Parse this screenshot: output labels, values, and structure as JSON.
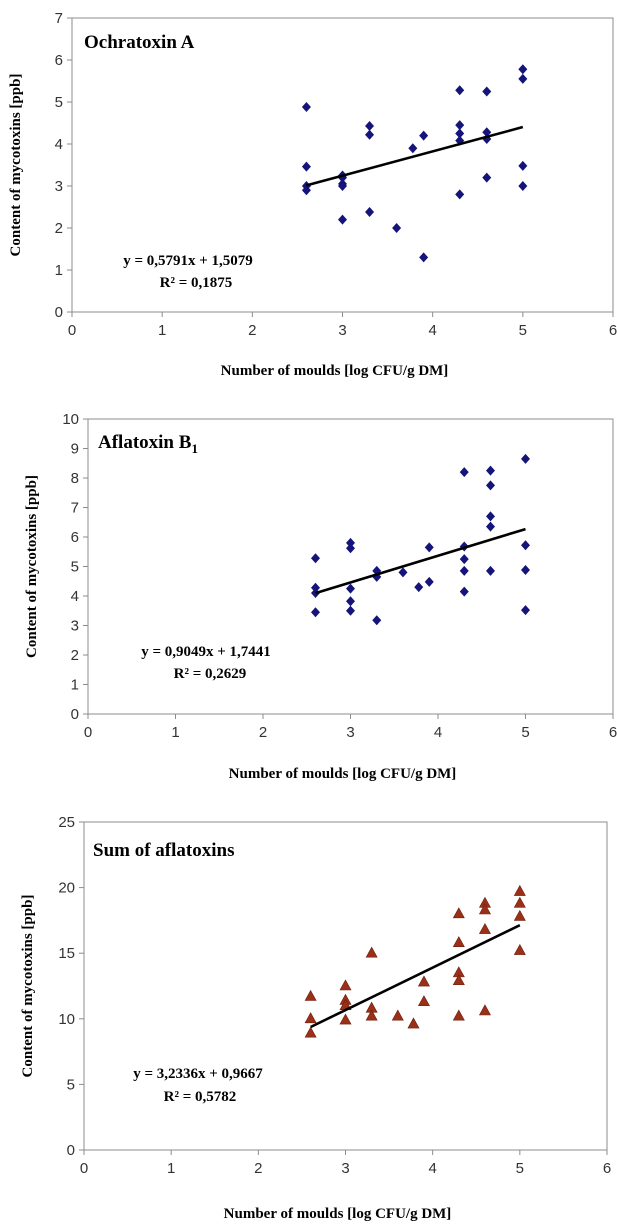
{
  "chart_data": [
    {
      "type": "scatter",
      "title": "Ochratoxin A",
      "title_sub": "",
      "xlabel": "Number of moulds  [log CFU/g DM]",
      "ylabel": "Content of mycotoxins [ppb]",
      "xlim": [
        0,
        6
      ],
      "ylim": [
        0,
        7
      ],
      "xticks": [
        "0",
        "1",
        "2",
        "3",
        "4",
        "5",
        "6"
      ],
      "yticks": [
        "0",
        "1",
        "2",
        "3",
        "4",
        "5",
        "6",
        "7"
      ],
      "marker": "diamond",
      "color": "#14147a",
      "points": [
        [
          2.6,
          4.88
        ],
        [
          2.6,
          3.46
        ],
        [
          2.6,
          3.0
        ],
        [
          2.6,
          2.9
        ],
        [
          3.0,
          3.25
        ],
        [
          3.0,
          3.2
        ],
        [
          3.0,
          3.05
        ],
        [
          3.0,
          3.0
        ],
        [
          3.0,
          2.2
        ],
        [
          3.3,
          4.43
        ],
        [
          3.3,
          4.22
        ],
        [
          3.3,
          2.38
        ],
        [
          3.6,
          2.0
        ],
        [
          3.78,
          3.9
        ],
        [
          3.9,
          4.2
        ],
        [
          3.9,
          1.3
        ],
        [
          4.3,
          5.28
        ],
        [
          4.3,
          4.45
        ],
        [
          4.3,
          4.25
        ],
        [
          4.3,
          4.08
        ],
        [
          4.3,
          2.8
        ],
        [
          4.6,
          5.25
        ],
        [
          4.6,
          4.28
        ],
        [
          4.6,
          4.12
        ],
        [
          4.6,
          3.2
        ],
        [
          5.0,
          5.78
        ],
        [
          5.0,
          5.55
        ],
        [
          5.0,
          3.48
        ],
        [
          5.0,
          3.0
        ]
      ],
      "trendline": {
        "slope": 0.5791,
        "intercept": 1.5079,
        "x_range": [
          2.6,
          5.0
        ]
      },
      "equation": "y = 0,5791x + 1,5079",
      "r2": "R² = 0,1875"
    },
    {
      "type": "scatter",
      "title": "Aflatoxin B",
      "title_sub": "1",
      "xlabel": "Number of moulds  [log CFU/g DM]",
      "ylabel": "Content of mycotoxins [ppb]",
      "xlim": [
        0,
        6
      ],
      "ylim": [
        0,
        10
      ],
      "xticks": [
        "0",
        "1",
        "2",
        "3",
        "4",
        "5",
        "6"
      ],
      "yticks": [
        "0",
        "1",
        "2",
        "3",
        "4",
        "5",
        "6",
        "7",
        "8",
        "9",
        "10"
      ],
      "marker": "diamond",
      "color": "#14147a",
      "points": [
        [
          2.6,
          5.28
        ],
        [
          2.6,
          4.28
        ],
        [
          2.6,
          4.1
        ],
        [
          2.6,
          3.45
        ],
        [
          3.0,
          5.8
        ],
        [
          3.0,
          5.62
        ],
        [
          3.0,
          4.25
        ],
        [
          3.0,
          3.82
        ],
        [
          3.0,
          3.5
        ],
        [
          3.3,
          4.85
        ],
        [
          3.3,
          4.65
        ],
        [
          3.3,
          3.18
        ],
        [
          3.6,
          4.8
        ],
        [
          3.78,
          4.3
        ],
        [
          3.9,
          5.65
        ],
        [
          3.9,
          4.48
        ],
        [
          4.3,
          8.2
        ],
        [
          4.3,
          5.68
        ],
        [
          4.3,
          5.25
        ],
        [
          4.3,
          4.85
        ],
        [
          4.3,
          4.15
        ],
        [
          4.6,
          8.25
        ],
        [
          4.6,
          7.75
        ],
        [
          4.6,
          6.7
        ],
        [
          4.6,
          6.35
        ],
        [
          4.6,
          4.85
        ],
        [
          5.0,
          8.65
        ],
        [
          5.0,
          5.72
        ],
        [
          5.0,
          4.88
        ],
        [
          5.0,
          3.52
        ]
      ],
      "trendline": {
        "slope": 0.9049,
        "intercept": 1.7441,
        "x_range": [
          2.6,
          5.0
        ]
      },
      "equation": "y = 0,9049x + 1,7441",
      "r2": "R² = 0,2629"
    },
    {
      "type": "scatter",
      "title": "Sum of aflatoxins",
      "title_sub": "",
      "xlabel": "Number of moulds  [log CFU/g DM]",
      "ylabel": "Content of mycotoxins [ppb]",
      "xlim": [
        0,
        6
      ],
      "ylim": [
        0,
        25
      ],
      "xticks": [
        "0",
        "1",
        "2",
        "3",
        "4",
        "5",
        "6"
      ],
      "yticks": [
        "0",
        "5",
        "10",
        "15",
        "20",
        "25"
      ],
      "marker": "triangle",
      "color": "#9a3018",
      "points": [
        [
          2.6,
          11.7
        ],
        [
          2.6,
          10.0
        ],
        [
          2.6,
          8.9
        ],
        [
          3.0,
          12.5
        ],
        [
          3.0,
          11.4
        ],
        [
          3.0,
          11.0
        ],
        [
          3.0,
          9.9
        ],
        [
          3.3,
          15.0
        ],
        [
          3.3,
          10.8
        ],
        [
          3.3,
          10.2
        ],
        [
          3.6,
          10.2
        ],
        [
          3.78,
          9.6
        ],
        [
          3.9,
          12.8
        ],
        [
          3.9,
          11.3
        ],
        [
          4.3,
          18.0
        ],
        [
          4.3,
          15.8
        ],
        [
          4.3,
          13.5
        ],
        [
          4.3,
          12.9
        ],
        [
          4.3,
          10.2
        ],
        [
          4.6,
          18.8
        ],
        [
          4.6,
          18.3
        ],
        [
          4.6,
          16.8
        ],
        [
          4.6,
          10.6
        ],
        [
          5.0,
          19.7
        ],
        [
          5.0,
          18.8
        ],
        [
          5.0,
          17.8
        ],
        [
          5.0,
          15.2
        ]
      ],
      "trendline": {
        "slope": 3.2336,
        "intercept": 0.9667,
        "x_range": [
          2.6,
          5.0
        ]
      },
      "equation": "y = 3,2336x + 0,9667",
      "r2": "R² = 0,5782"
    }
  ]
}
